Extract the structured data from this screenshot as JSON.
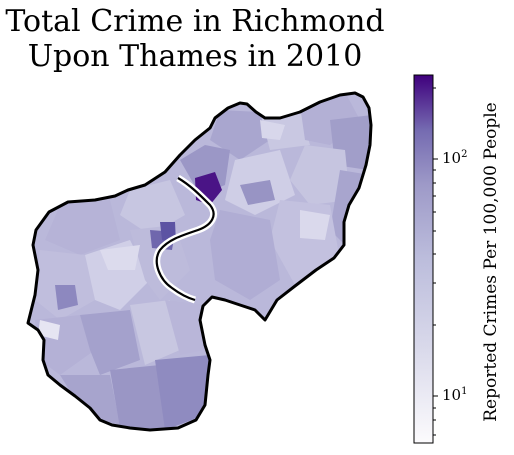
{
  "title_line1": "Total Crime in Richmond",
  "title_line2": "Upon Thames in 2010",
  "colorbar": {
    "label": "Reported Crimes Per 100,000 People",
    "scale": "log",
    "range": [
      6,
      230
    ],
    "ticks": [
      {
        "value": 10,
        "base": "10",
        "exp": "1"
      },
      {
        "value": 100,
        "base": "10",
        "exp": "2"
      }
    ],
    "color_low": "#fcfbfd",
    "color_high": "#3f007d"
  },
  "colors": {
    "outline": "#000000",
    "river": "#ffffff",
    "highlight": "#4a1486"
  }
}
